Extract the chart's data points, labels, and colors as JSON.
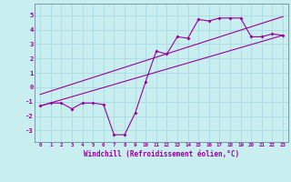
{
  "xlabel": "Windchill (Refroidissement éolien,°C)",
  "xlim": [
    -0.5,
    23.5
  ],
  "ylim": [
    -3.8,
    5.8
  ],
  "yticks": [
    -3,
    -2,
    -1,
    0,
    1,
    2,
    3,
    4,
    5
  ],
  "xticks": [
    0,
    1,
    2,
    3,
    4,
    5,
    6,
    7,
    8,
    9,
    10,
    11,
    12,
    13,
    14,
    15,
    16,
    17,
    18,
    19,
    20,
    21,
    22,
    23
  ],
  "bg_color": "#c8eef0",
  "line_color": "#990099",
  "grid_color": "#a0d8e0",
  "zigzag_x": [
    0,
    1,
    2,
    3,
    4,
    5,
    6,
    7,
    8,
    9,
    10,
    11,
    12,
    13,
    14,
    15,
    16,
    17,
    18,
    19,
    20,
    21,
    22,
    23
  ],
  "zigzag_y": [
    -1.3,
    -1.1,
    -1.1,
    -1.5,
    -1.1,
    -1.1,
    -1.2,
    -3.3,
    -3.3,
    -1.8,
    0.4,
    2.5,
    2.3,
    3.5,
    3.4,
    4.7,
    4.6,
    4.8,
    4.8,
    4.8,
    3.5,
    3.5,
    3.7,
    3.6
  ],
  "line1_x": [
    0,
    23
  ],
  "line1_y": [
    -1.3,
    3.6
  ],
  "line2_x": [
    0,
    23
  ],
  "line2_y": [
    -0.5,
    4.9
  ],
  "spine_color": "#7799aa"
}
